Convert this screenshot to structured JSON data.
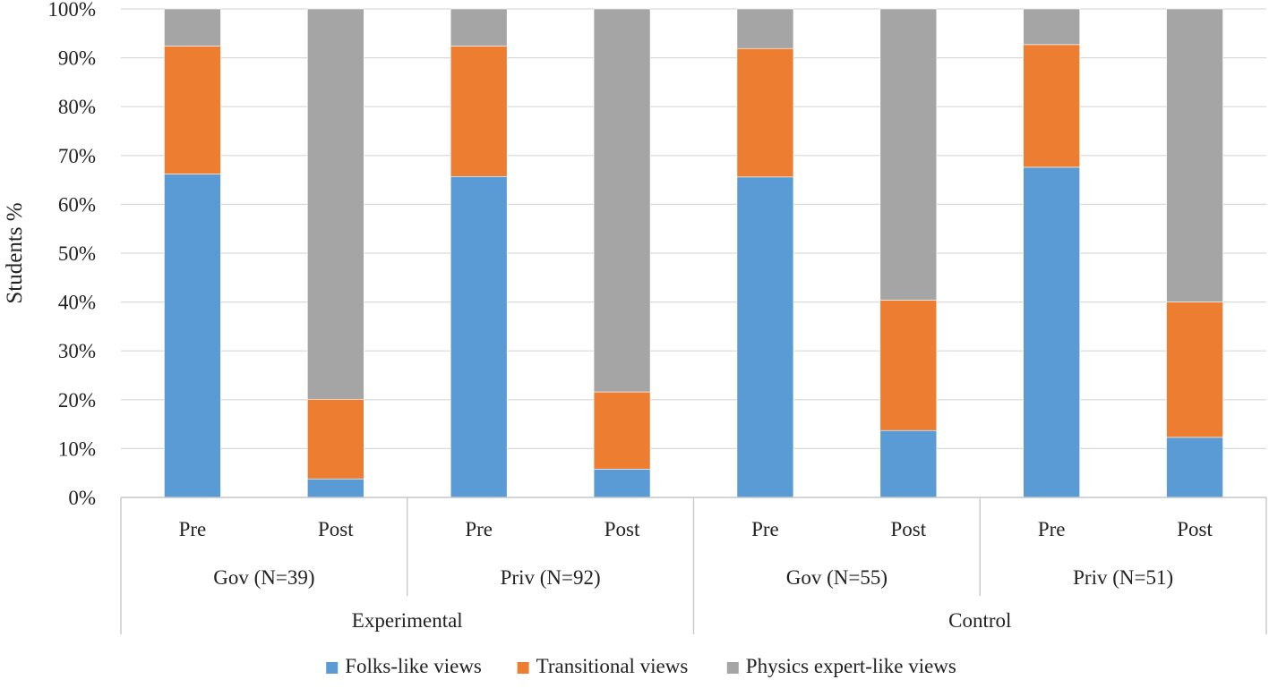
{
  "chart_data": {
    "type": "bar",
    "stacked": true,
    "ylabel": "Students %",
    "ylim": [
      0,
      100
    ],
    "yticks": [
      0,
      10,
      20,
      30,
      40,
      50,
      60,
      70,
      80,
      90,
      100
    ],
    "ytick_labels": [
      "0%",
      "10%",
      "20%",
      "30%",
      "40%",
      "50%",
      "60%",
      "70%",
      "80%",
      "90%",
      "100%"
    ],
    "grid": true,
    "legend_position": "bottom",
    "categories": [
      "Pre",
      "Post",
      "Pre",
      "Post",
      "Pre",
      "Post",
      "Pre",
      "Post"
    ],
    "subgroups": [
      "Gov (N=39)",
      "Priv (N=92)",
      "Gov (N=55)",
      "Priv (N=51)"
    ],
    "groups": [
      "Experimental",
      "Control"
    ],
    "series": [
      {
        "name": "Folks-like views",
        "color": "#5b9bd5",
        "values": [
          66.2,
          3.8,
          65.7,
          5.8,
          65.6,
          13.7,
          67.6,
          12.3
        ]
      },
      {
        "name": "Transitional views",
        "color": "#ed7d31",
        "values": [
          26.2,
          16.3,
          26.7,
          15.8,
          26.3,
          26.7,
          25.1,
          27.7
        ]
      },
      {
        "name": "Physics expert-like views",
        "color": "#a5a5a5",
        "values": [
          7.6,
          79.9,
          7.6,
          78.4,
          8.1,
          59.6,
          7.3,
          60.0
        ]
      }
    ]
  }
}
